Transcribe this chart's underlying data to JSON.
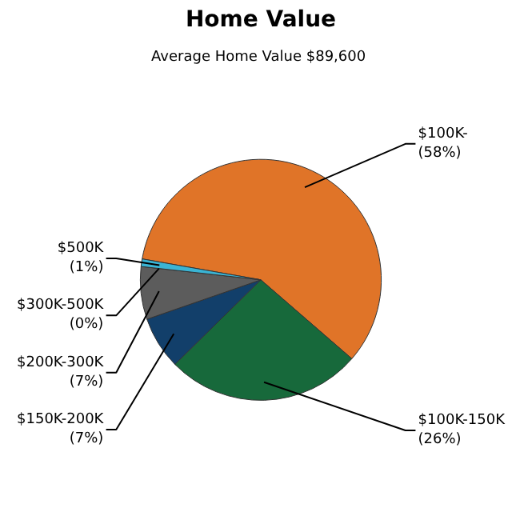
{
  "chart_data": {
    "type": "pie",
    "title": "Home Value",
    "subtitle": "Average Home Value  $89,600",
    "categories": [
      "$100K-",
      "$100K-150K",
      "$150K-200K",
      "$200K-300K",
      "$300K-500K",
      "$500K"
    ],
    "values": [
      58,
      26,
      7,
      7,
      0,
      1
    ],
    "value_labels": [
      "(58%)",
      "(26%)",
      "(7%)",
      "(7%)",
      "(0%)",
      "(1%)"
    ],
    "colors": [
      "#e07428",
      "#17693b",
      "#123f6a",
      "#5c5c5c",
      "#7a7a7a",
      "#3ab4d4"
    ]
  }
}
